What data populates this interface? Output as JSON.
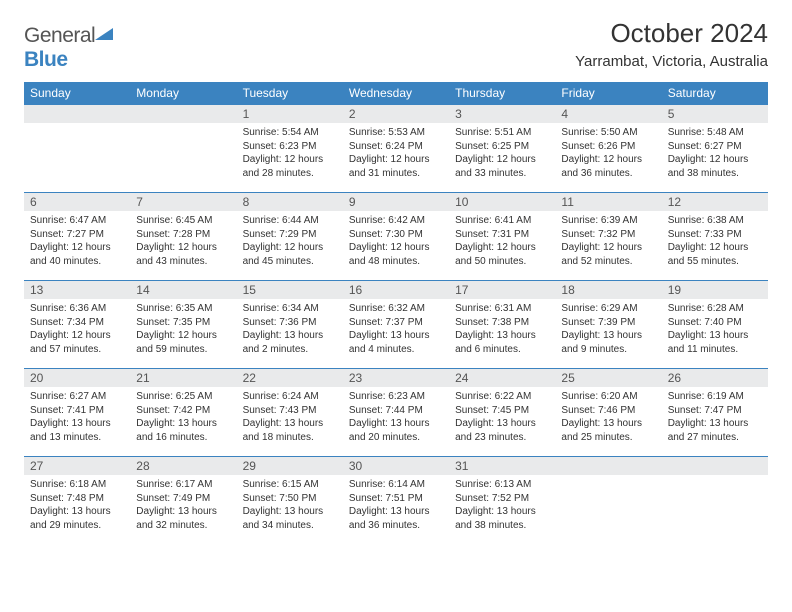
{
  "brand": {
    "word1": "General",
    "word2": "Blue"
  },
  "title": "October 2024",
  "location": "Yarrambat, Victoria, Australia",
  "colors": {
    "header_bg": "#3b83c0",
    "header_text": "#ffffff",
    "daynum_bg": "#e9eaeb",
    "border": "#3b83c0",
    "page_bg": "#ffffff",
    "text": "#333333"
  },
  "weekdays": [
    "Sunday",
    "Monday",
    "Tuesday",
    "Wednesday",
    "Thursday",
    "Friday",
    "Saturday"
  ],
  "weeks": [
    [
      null,
      null,
      {
        "n": "1",
        "sr": "5:54 AM",
        "ss": "6:23 PM",
        "dl": "12 hours and 28 minutes."
      },
      {
        "n": "2",
        "sr": "5:53 AM",
        "ss": "6:24 PM",
        "dl": "12 hours and 31 minutes."
      },
      {
        "n": "3",
        "sr": "5:51 AM",
        "ss": "6:25 PM",
        "dl": "12 hours and 33 minutes."
      },
      {
        "n": "4",
        "sr": "5:50 AM",
        "ss": "6:26 PM",
        "dl": "12 hours and 36 minutes."
      },
      {
        "n": "5",
        "sr": "5:48 AM",
        "ss": "6:27 PM",
        "dl": "12 hours and 38 minutes."
      }
    ],
    [
      {
        "n": "6",
        "sr": "6:47 AM",
        "ss": "7:27 PM",
        "dl": "12 hours and 40 minutes."
      },
      {
        "n": "7",
        "sr": "6:45 AM",
        "ss": "7:28 PM",
        "dl": "12 hours and 43 minutes."
      },
      {
        "n": "8",
        "sr": "6:44 AM",
        "ss": "7:29 PM",
        "dl": "12 hours and 45 minutes."
      },
      {
        "n": "9",
        "sr": "6:42 AM",
        "ss": "7:30 PM",
        "dl": "12 hours and 48 minutes."
      },
      {
        "n": "10",
        "sr": "6:41 AM",
        "ss": "7:31 PM",
        "dl": "12 hours and 50 minutes."
      },
      {
        "n": "11",
        "sr": "6:39 AM",
        "ss": "7:32 PM",
        "dl": "12 hours and 52 minutes."
      },
      {
        "n": "12",
        "sr": "6:38 AM",
        "ss": "7:33 PM",
        "dl": "12 hours and 55 minutes."
      }
    ],
    [
      {
        "n": "13",
        "sr": "6:36 AM",
        "ss": "7:34 PM",
        "dl": "12 hours and 57 minutes."
      },
      {
        "n": "14",
        "sr": "6:35 AM",
        "ss": "7:35 PM",
        "dl": "12 hours and 59 minutes."
      },
      {
        "n": "15",
        "sr": "6:34 AM",
        "ss": "7:36 PM",
        "dl": "13 hours and 2 minutes."
      },
      {
        "n": "16",
        "sr": "6:32 AM",
        "ss": "7:37 PM",
        "dl": "13 hours and 4 minutes."
      },
      {
        "n": "17",
        "sr": "6:31 AM",
        "ss": "7:38 PM",
        "dl": "13 hours and 6 minutes."
      },
      {
        "n": "18",
        "sr": "6:29 AM",
        "ss": "7:39 PM",
        "dl": "13 hours and 9 minutes."
      },
      {
        "n": "19",
        "sr": "6:28 AM",
        "ss": "7:40 PM",
        "dl": "13 hours and 11 minutes."
      }
    ],
    [
      {
        "n": "20",
        "sr": "6:27 AM",
        "ss": "7:41 PM",
        "dl": "13 hours and 13 minutes."
      },
      {
        "n": "21",
        "sr": "6:25 AM",
        "ss": "7:42 PM",
        "dl": "13 hours and 16 minutes."
      },
      {
        "n": "22",
        "sr": "6:24 AM",
        "ss": "7:43 PM",
        "dl": "13 hours and 18 minutes."
      },
      {
        "n": "23",
        "sr": "6:23 AM",
        "ss": "7:44 PM",
        "dl": "13 hours and 20 minutes."
      },
      {
        "n": "24",
        "sr": "6:22 AM",
        "ss": "7:45 PM",
        "dl": "13 hours and 23 minutes."
      },
      {
        "n": "25",
        "sr": "6:20 AM",
        "ss": "7:46 PM",
        "dl": "13 hours and 25 minutes."
      },
      {
        "n": "26",
        "sr": "6:19 AM",
        "ss": "7:47 PM",
        "dl": "13 hours and 27 minutes."
      }
    ],
    [
      {
        "n": "27",
        "sr": "6:18 AM",
        "ss": "7:48 PM",
        "dl": "13 hours and 29 minutes."
      },
      {
        "n": "28",
        "sr": "6:17 AM",
        "ss": "7:49 PM",
        "dl": "13 hours and 32 minutes."
      },
      {
        "n": "29",
        "sr": "6:15 AM",
        "ss": "7:50 PM",
        "dl": "13 hours and 34 minutes."
      },
      {
        "n": "30",
        "sr": "6:14 AM",
        "ss": "7:51 PM",
        "dl": "13 hours and 36 minutes."
      },
      {
        "n": "31",
        "sr": "6:13 AM",
        "ss": "7:52 PM",
        "dl": "13 hours and 38 minutes."
      },
      null,
      null
    ]
  ],
  "labels": {
    "sunrise": "Sunrise:",
    "sunset": "Sunset:",
    "daylight": "Daylight:"
  }
}
